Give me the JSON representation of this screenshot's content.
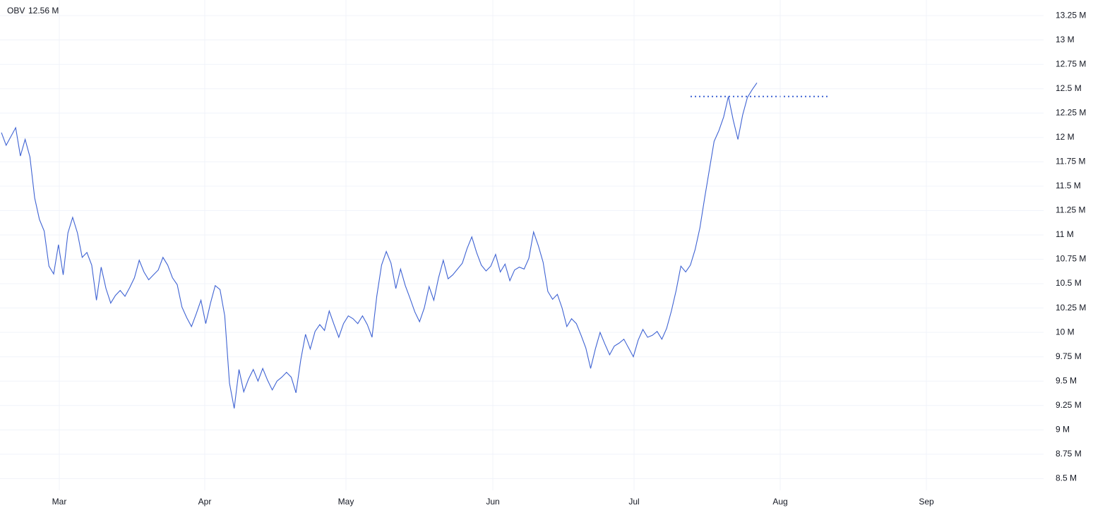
{
  "chart_data": {
    "type": "line",
    "title": "OBV",
    "legend_value": "12.56 M",
    "x_labels": [
      "Mar",
      "Apr",
      "May",
      "Jun",
      "Jul",
      "Aug",
      "Sep"
    ],
    "series": [
      {
        "name": "OBV",
        "color": "#3f63d3",
        "values": [
          12.05,
          11.92,
          12.01,
          12.1,
          11.81,
          11.98,
          11.8,
          11.38,
          11.16,
          11.04,
          10.68,
          10.6,
          10.9,
          10.59,
          11.02,
          11.18,
          11.02,
          10.77,
          10.82,
          10.69,
          10.33,
          10.67,
          10.45,
          10.3,
          10.38,
          10.43,
          10.37,
          10.46,
          10.56,
          10.74,
          10.62,
          10.54,
          10.59,
          10.64,
          10.77,
          10.69,
          10.56,
          10.49,
          10.26,
          10.15,
          10.06,
          10.19,
          10.33,
          10.09,
          10.3,
          10.48,
          10.44,
          10.17,
          9.48,
          9.22,
          9.62,
          9.39,
          9.52,
          9.62,
          9.5,
          9.63,
          9.51,
          9.41,
          9.5,
          9.54,
          9.59,
          9.54,
          9.38,
          9.72,
          9.98,
          9.83,
          10.01,
          10.08,
          10.02,
          10.22,
          10.08,
          9.95,
          10.09,
          10.17,
          10.14,
          10.09,
          10.17,
          10.08,
          9.95,
          10.37,
          10.69,
          10.83,
          10.71,
          10.45,
          10.65,
          10.48,
          10.35,
          10.21,
          10.11,
          10.25,
          10.47,
          10.33,
          10.56,
          10.74,
          10.55,
          10.59,
          10.65,
          10.71,
          10.86,
          10.98,
          10.82,
          10.69,
          10.63,
          10.68,
          10.8,
          10.62,
          10.7,
          10.53,
          10.64,
          10.67,
          10.65,
          10.76,
          11.03,
          10.89,
          10.72,
          10.42,
          10.34,
          10.39,
          10.25,
          10.06,
          10.14,
          10.09,
          9.97,
          9.84,
          9.63,
          9.83,
          10.0,
          9.88,
          9.77,
          9.86,
          9.89,
          9.93,
          9.84,
          9.75,
          9.92,
          10.03,
          9.95,
          9.97,
          10.01,
          9.93,
          10.04,
          10.22,
          10.43,
          10.68,
          10.62,
          10.69,
          10.85,
          11.07,
          11.38,
          11.67,
          11.96,
          12.07,
          12.21,
          12.42,
          12.18,
          11.98,
          12.23,
          12.41,
          12.49,
          12.56
        ]
      }
    ],
    "level_line": {
      "value": 12.42,
      "color": "#3f63d3"
    },
    "ylim": [
      8.38,
      13.41
    ],
    "yticks": [
      {
        "value": 8.5,
        "label": "8.5 M"
      },
      {
        "value": 8.75,
        "label": "8.75 M"
      },
      {
        "value": 9,
        "label": "9 M"
      },
      {
        "value": 9.25,
        "label": "9.25 M"
      },
      {
        "value": 9.5,
        "label": "9.5 M"
      },
      {
        "value": 9.75,
        "label": "9.75 M"
      },
      {
        "value": 10,
        "label": "10 M"
      },
      {
        "value": 10.25,
        "label": "10.25 M"
      },
      {
        "value": 10.5,
        "label": "10.5 M"
      },
      {
        "value": 10.75,
        "label": "10.75 M"
      },
      {
        "value": 11,
        "label": "11 M"
      },
      {
        "value": 11.25,
        "label": "11.25 M"
      },
      {
        "value": 11.5,
        "label": "11.5 M"
      },
      {
        "value": 11.75,
        "label": "11.75 M"
      },
      {
        "value": 12,
        "label": "12 M"
      },
      {
        "value": 12.25,
        "label": "12.25 M"
      },
      {
        "value": 12.5,
        "label": "12.5 M"
      },
      {
        "value": 12.75,
        "label": "12.75 M"
      },
      {
        "value": 13,
        "label": "13 M"
      },
      {
        "value": 13.25,
        "label": "13.25 M"
      }
    ],
    "grid": true
  }
}
